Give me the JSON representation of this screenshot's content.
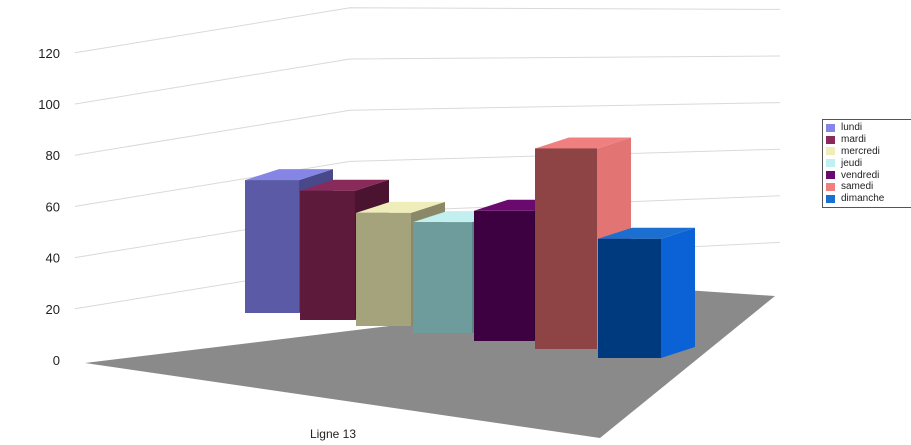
{
  "chart_data": {
    "type": "bar",
    "categories": [
      "Ligne 13"
    ],
    "series": [
      {
        "name": "lundi",
        "values": [
          63
        ]
      },
      {
        "name": "mardi",
        "values": [
          64
        ]
      },
      {
        "name": "mercredi",
        "values": [
          58
        ]
      },
      {
        "name": "jeudi",
        "values": [
          59
        ]
      },
      {
        "name": "vendredi",
        "values": [
          70
        ]
      },
      {
        "name": "samedi",
        "values": [
          109
        ]
      },
      {
        "name": "dimanche",
        "values": [
          67
        ]
      }
    ],
    "ylim": [
      0,
      120
    ],
    "yticks": [
      0,
      20,
      40,
      60,
      80,
      100,
      120
    ],
    "grid": true,
    "legend_position": "right",
    "colors": {
      "lundi": {
        "front": "#5a5aa6",
        "top": "#8585e6",
        "side": "#48488a"
      },
      "mardi": {
        "front": "#5e1a3a",
        "top": "#8a2a5a",
        "side": "#4a1430"
      },
      "mercredi": {
        "front": "#a5a37c",
        "top": "#efedb9",
        "side": "#8a8866"
      },
      "jeudi": {
        "front": "#6e9c9c",
        "top": "#c2efef",
        "side": "#5a8484"
      },
      "vendredi": {
        "front": "#3d0040",
        "top": "#6a0a6e",
        "side": "#300033"
      },
      "samedi": {
        "front": "#8e4444",
        "top": "#f08080",
        "side": "#e27474"
      },
      "dimanche": {
        "front": "#003a7e",
        "top": "#1b6fd0",
        "side": "#0a62d6"
      },
      "floor": "#8a8a8a",
      "grid": "#d9d9d9"
    }
  }
}
